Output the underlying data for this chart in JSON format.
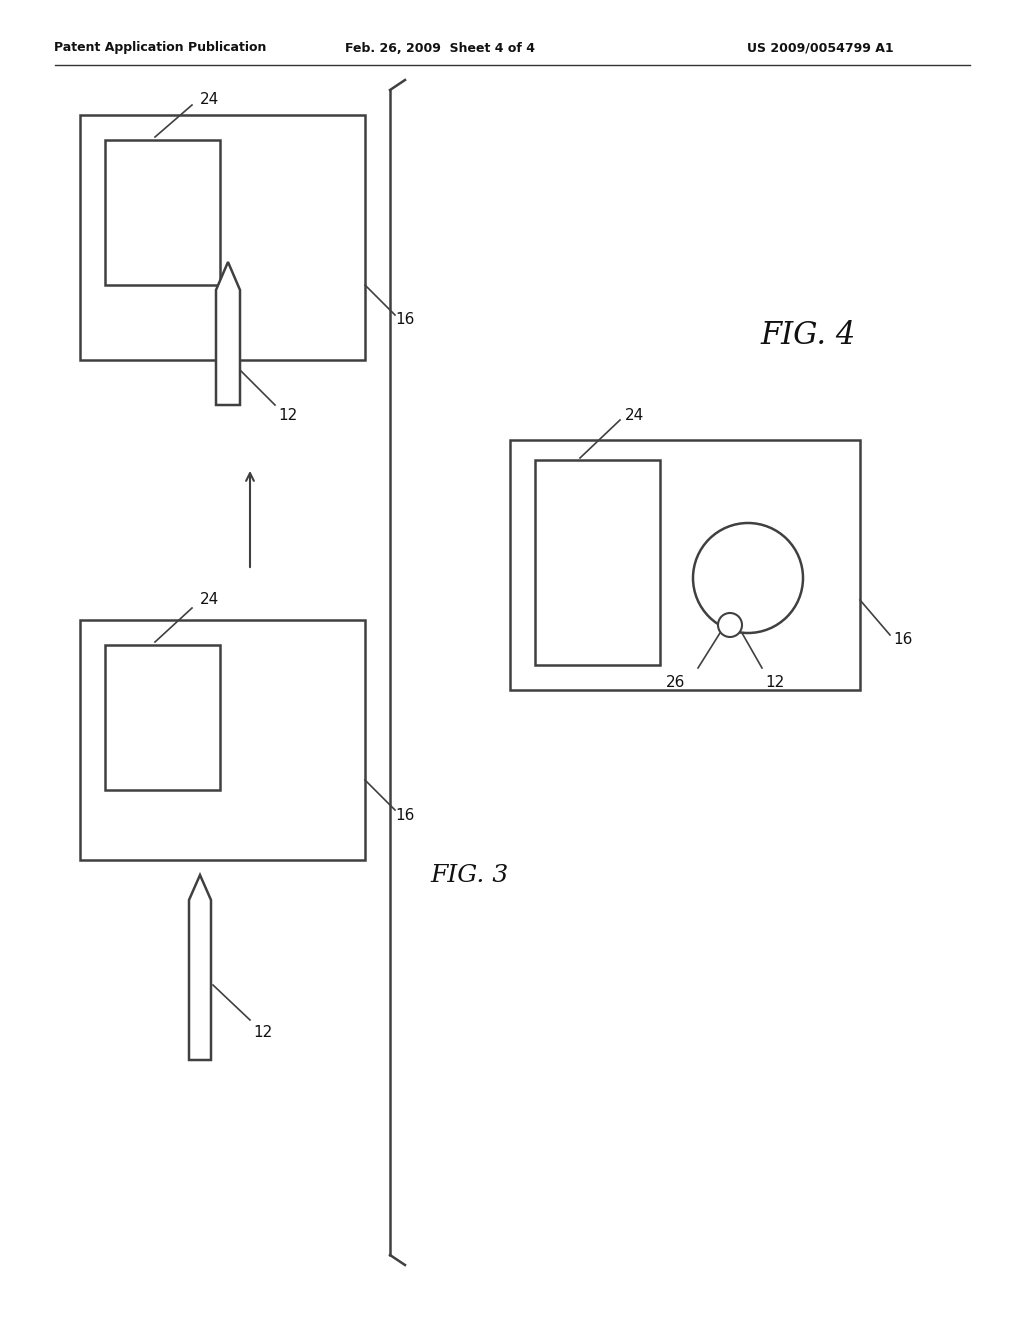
{
  "bg_color": "#ffffff",
  "header_text": "Patent Application Publication",
  "header_date": "Feb. 26, 2009  Sheet 4 of 4",
  "header_patent": "US 2009/0054799 A1",
  "fig3_label": "FIG. 3",
  "fig4_label": "FIG. 4",
  "line_color": "#404040"
}
